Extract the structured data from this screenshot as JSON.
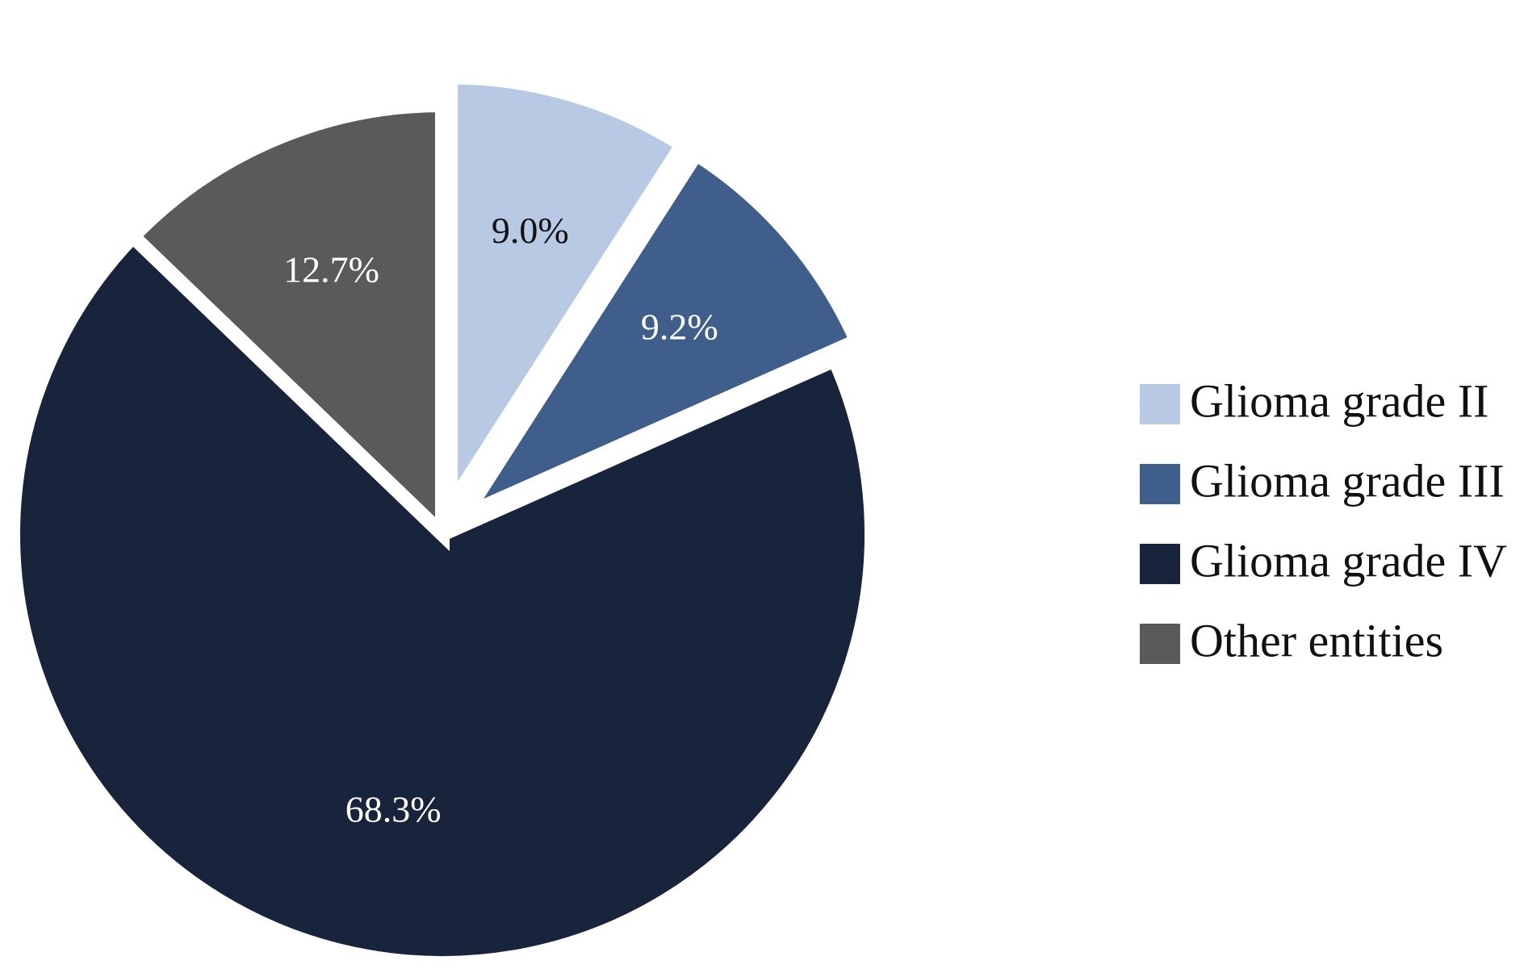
{
  "chart_data": {
    "type": "pie",
    "title": "",
    "slices": [
      {
        "label": "Glioma grade II",
        "value": 9.0,
        "value_label": "9.0%",
        "color": "#b8c9e3",
        "label_color": "#111111",
        "exploded": true
      },
      {
        "label": "Glioma grade III",
        "value": 9.2,
        "value_label": "9.2%",
        "color": "#405e8c",
        "label_color": "#ffffff",
        "exploded": true
      },
      {
        "label": "Glioma grade IV",
        "value": 68.3,
        "value_label": "68.3%",
        "color": "#18233c",
        "label_color": "#ffffff",
        "exploded": false
      },
      {
        "label": "Other entities",
        "value": 12.7,
        "value_label": "12.7%",
        "color": "#5a5a5a",
        "label_color": "#ffffff",
        "exploded": false
      }
    ],
    "legend_position": "right",
    "start_angle": "12 o'clock",
    "direction": "clockwise"
  }
}
